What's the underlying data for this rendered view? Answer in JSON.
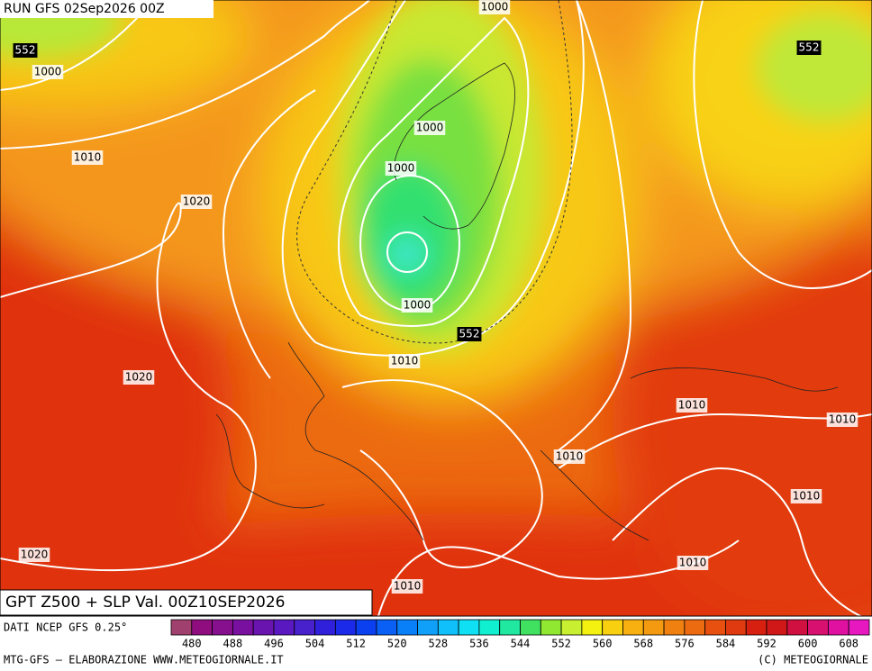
{
  "header": {
    "run": "RUN GFS 02Sep2026 00Z"
  },
  "map": {
    "contour_labels": [
      552,
      1000,
      1010,
      1020,
      1000,
      552,
      1000,
      1000,
      1000,
      552,
      1010,
      1020,
      1010,
      1010,
      1010,
      1010,
      1020,
      1010,
      1010
    ]
  },
  "footer": {
    "title": "GPT Z500 + SLP Val. 00Z10SEP2026",
    "source": "DATI NCEP GFS 0.25°",
    "credit_left": "MTG-GFS — ELABORAZIONE WWW.METEOGIORNALE.IT",
    "credit_right": "(C) METEOGIORNALE"
  },
  "colorbar": {
    "labels": [
      480,
      488,
      496,
      504,
      512,
      520,
      528,
      536,
      544,
      552,
      560,
      568,
      576,
      584,
      592,
      600,
      608
    ],
    "colors": [
      "#a0406e",
      "#900d80",
      "#86108e",
      "#7a10a0",
      "#6a14b0",
      "#5a18c0",
      "#4820cc",
      "#3020dc",
      "#1a2ae8",
      "#0a40f0",
      "#0a60f4",
      "#0a80f8",
      "#10a0fa",
      "#10c0fa",
      "#10e0f4",
      "#10f0d0",
      "#20e8a0",
      "#40e060",
      "#90e830",
      "#c8f030",
      "#f4f010",
      "#f8d010",
      "#f8b010",
      "#f49a10",
      "#f08010",
      "#ec6a10",
      "#e85010",
      "#e03a10",
      "#d82010",
      "#d01818",
      "#d01040",
      "#d81070",
      "#e010a0",
      "#e818c0"
    ]
  }
}
